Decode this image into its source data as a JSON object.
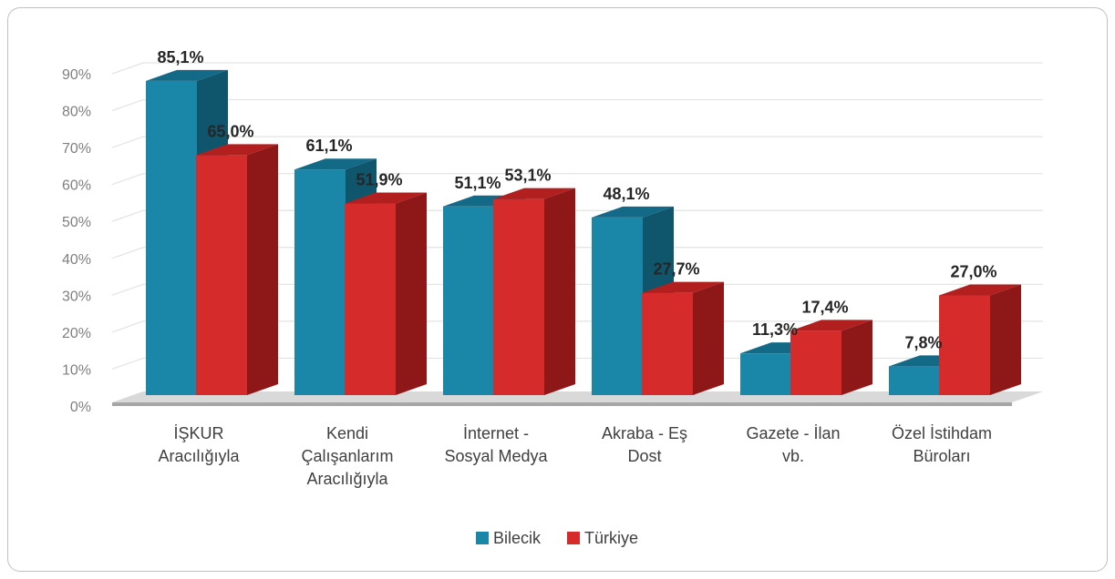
{
  "chart_data": {
    "type": "bar",
    "categories": [
      "İŞKUR Aracılığıyla",
      "Kendi Çalışanlarım Aracılığıyla",
      "İnternet - Sosyal Medya",
      "Akraba - Eş Dost",
      "Gazete - İlan vb.",
      "Özel İstihdam Büroları"
    ],
    "category_lines": [
      [
        "İŞKUR",
        "Aracılığıyla"
      ],
      [
        "Kendi",
        "Çalışanlarım",
        "Aracılığıyla"
      ],
      [
        "İnternet -",
        "Sosyal Medya"
      ],
      [
        "Akraba - Eş",
        "Dost"
      ],
      [
        "Gazete - İlan",
        "vb."
      ],
      [
        "Özel İstihdam",
        "Büroları"
      ]
    ],
    "series": [
      {
        "name": "Bilecik",
        "values": [
          85.1,
          61.1,
          51.1,
          48.1,
          11.3,
          7.8
        ],
        "labels": [
          "85,1%",
          "61,1%",
          "51,1%",
          "48,1%",
          "11,3%",
          "7,8%"
        ],
        "color": "#1a86a8",
        "top_color": "#136a86",
        "side_color": "#0f556b"
      },
      {
        "name": "Türkiye",
        "values": [
          65.0,
          51.9,
          53.1,
          27.7,
          17.4,
          27.0
        ],
        "labels": [
          "65,0%",
          "51,9%",
          "53,1%",
          "27,7%",
          "17,4%",
          "27,0%"
        ],
        "color": "#d62b2b",
        "top_color": "#b11f1f",
        "side_color": "#8e1717"
      }
    ],
    "y_ticks": [
      "0%",
      "10%",
      "20%",
      "30%",
      "40%",
      "50%",
      "60%",
      "70%",
      "80%",
      "90%"
    ],
    "ylim": [
      0,
      90
    ],
    "grid": true,
    "legend_position": "bottom"
  }
}
